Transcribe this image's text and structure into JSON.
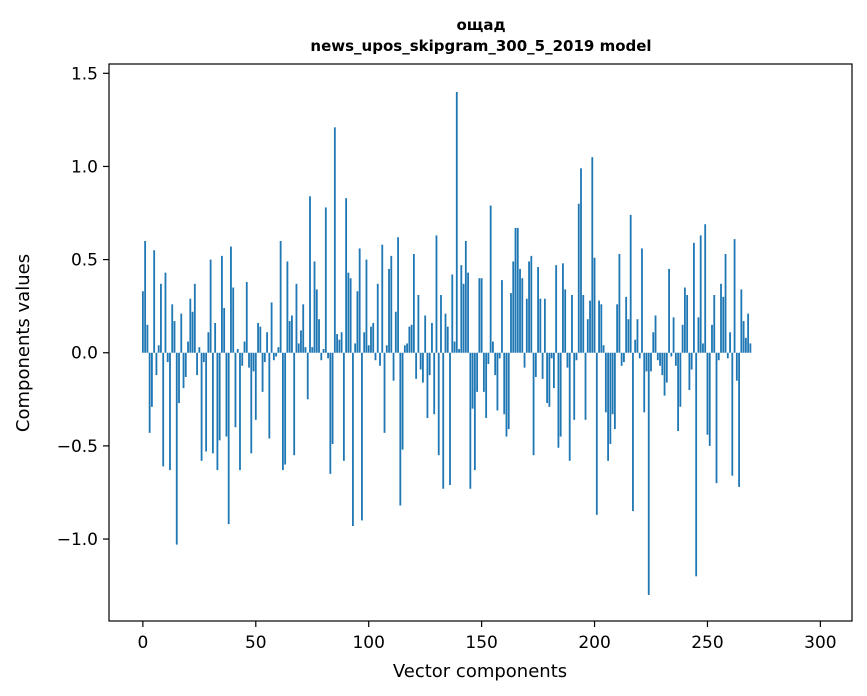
{
  "chart_data": {
    "type": "bar",
    "title": "ощад",
    "subtitle": "news_upos_skipgram_300_5_2019 model",
    "xlabel": "Vector components",
    "ylabel": "Components values",
    "xlim": [
      -15,
      314
    ],
    "ylim": [
      -1.44,
      1.55
    ],
    "xticks": [
      0,
      50,
      100,
      150,
      200,
      250,
      300
    ],
    "yticks": [
      -1.0,
      -0.5,
      0.0,
      0.5,
      1.0,
      1.5
    ],
    "ytick_labels": [
      "−1.0",
      "−0.5",
      "0.0",
      "0.5",
      "1.0",
      "1.5"
    ],
    "grid": false,
    "legend": "none",
    "bar_color": "#1f77b4",
    "series": [
      {
        "values": [
          0.33,
          0.6,
          0.15,
          -0.43,
          -0.29,
          0.55,
          -0.12,
          0.04,
          0.37,
          -0.61,
          0.43,
          -0.05,
          -0.63,
          0.26,
          0.17,
          -1.03,
          -0.27,
          0.21,
          -0.19,
          -0.13,
          0.06,
          0.29,
          0.22,
          0.37,
          -0.12,
          0.03,
          -0.58,
          -0.05,
          -0.53,
          0.11,
          0.5,
          -0.54,
          0.16,
          -0.63,
          -0.47,
          0.52,
          0.24,
          -0.45,
          -0.92,
          0.57,
          0.35,
          -0.4,
          0.02,
          -0.63,
          -0.07,
          0.06,
          0.38,
          -0.08,
          -0.54,
          -0.1,
          -0.36,
          0.16,
          0.14,
          -0.21,
          -0.05,
          0.11,
          -0.46,
          0.27,
          -0.04,
          -0.02,
          0.03,
          0.6,
          -0.63,
          -0.6,
          0.49,
          0.17,
          0.2,
          -0.55,
          0.37,
          0.05,
          0.12,
          0.26,
          0.03,
          -0.25,
          0.84,
          0.03,
          0.49,
          0.34,
          0.18,
          -0.04,
          0.02,
          0.78,
          -0.03,
          -0.65,
          -0.49,
          1.21,
          0.1,
          0.07,
          0.11,
          -0.58,
          0.83,
          0.43,
          0.4,
          -0.93,
          0.05,
          0.33,
          0.56,
          -0.9,
          0.11,
          0.5,
          0.04,
          0.14,
          0.16,
          -0.04,
          0.37,
          -0.07,
          0.58,
          -0.43,
          0.04,
          0.45,
          0.52,
          -0.15,
          0.22,
          0.62,
          -0.82,
          -0.52,
          0.04,
          0.05,
          0.14,
          0.15,
          0.53,
          -0.14,
          0.31,
          -0.09,
          -0.16,
          0.2,
          -0.35,
          -0.12,
          0.16,
          -0.33,
          0.63,
          -0.55,
          0.31,
          -0.73,
          0.21,
          0.14,
          -0.71,
          0.42,
          0.06,
          1.4,
          0.02,
          0.47,
          0.37,
          0.6,
          0.43,
          -0.73,
          -0.3,
          -0.63,
          -0.21,
          0.4,
          0.4,
          -0.21,
          -0.35,
          -0.06,
          0.79,
          0.06,
          -0.12,
          -0.31,
          -0.03,
          0.39,
          -0.33,
          -0.45,
          -0.41,
          0.32,
          0.49,
          0.67,
          0.67,
          0.45,
          0.4,
          -0.08,
          0.29,
          0.49,
          0.52,
          -0.55,
          -0.13,
          0.46,
          0.29,
          -0.14,
          0.29,
          -0.27,
          -0.29,
          -0.03,
          -0.19,
          0.47,
          -0.51,
          -0.45,
          0.48,
          0.34,
          -0.08,
          -0.58,
          0.31,
          -0.36,
          -0.04,
          0.8,
          0.99,
          0.31,
          -0.36,
          0.18,
          0.28,
          1.05,
          0.51,
          -0.87,
          0.28,
          0.26,
          0.04,
          -0.32,
          -0.58,
          -0.49,
          -0.33,
          -0.41,
          0.26,
          0.53,
          -0.07,
          -0.05,
          0.3,
          0.18,
          0.74,
          -0.85,
          0.07,
          0.18,
          -0.03,
          0.56,
          -0.32,
          -0.1,
          -1.3,
          -0.1,
          0.11,
          0.2,
          -0.04,
          -0.07,
          -0.12,
          -0.23,
          -0.16,
          0.45,
          -0.02,
          0.19,
          -0.07,
          -0.42,
          -0.29,
          0.15,
          0.35,
          0.31,
          -0.2,
          -0.09,
          0.59,
          -1.2,
          0.19,
          0.63,
          0.05,
          0.69,
          -0.44,
          -0.5,
          0.15,
          0.31,
          -0.7,
          -0.04,
          0.37,
          0.3,
          0.53,
          -0.03,
          0.11,
          -0.66,
          0.61,
          -0.15,
          -0.72,
          0.34,
          0.17,
          0.08,
          0.21,
          0.05
        ]
      }
    ]
  }
}
